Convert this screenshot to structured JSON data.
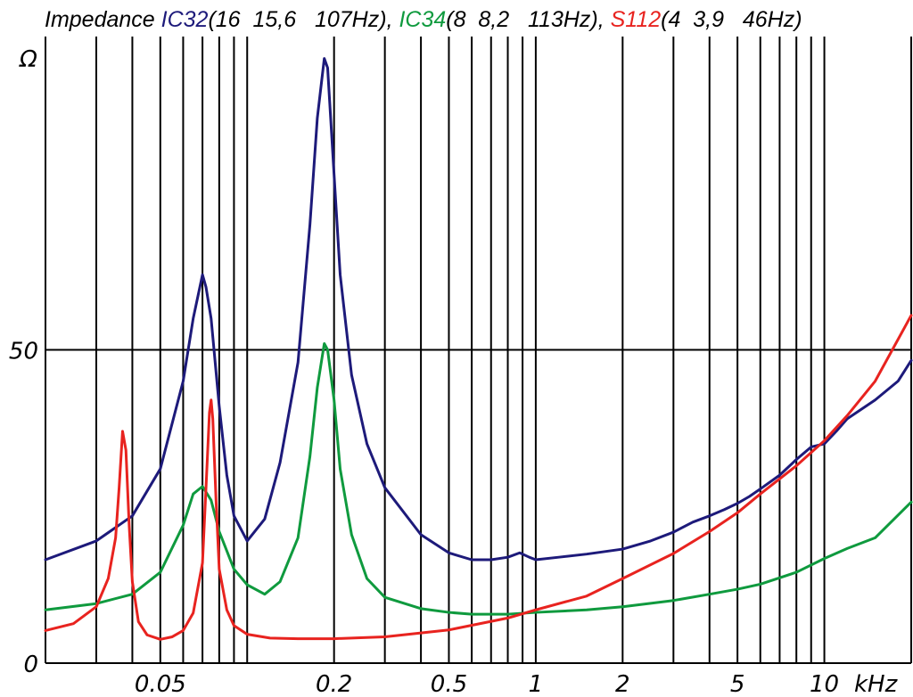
{
  "chart_data": {
    "type": "line",
    "title": {
      "prefix": "Impedance ",
      "parts": [
        {
          "name": "IC32",
          "detail": "(16  15,6   107Hz), ",
          "color": "#1d1a7a"
        },
        {
          "name": "IC34",
          "detail": "(8  8,2   113Hz), ",
          "color": "#0f9a3e"
        },
        {
          "name": "S112",
          "detail": "(4  3,9   46Hz)",
          "color": "#e8231f"
        }
      ]
    },
    "x_unit_label": "kHz",
    "y_unit_label": "Ω",
    "x_scale": "log",
    "x_range_khz": [
      0.02,
      20
    ],
    "y_range_ohm": [
      0,
      100
    ],
    "x_tick_labels": [
      {
        "value": 0.05,
        "label": "0.05"
      },
      {
        "value": 0.2,
        "label": "0.2"
      },
      {
        "value": 0.5,
        "label": "0.5"
      },
      {
        "value": 1,
        "label": "1"
      },
      {
        "value": 2,
        "label": "2"
      },
      {
        "value": 5,
        "label": "5"
      },
      {
        "value": 10,
        "label": "10"
      }
    ],
    "x_gridlines_khz": [
      0.03,
      0.04,
      0.05,
      0.06,
      0.07,
      0.08,
      0.09,
      0.1,
      0.2,
      0.3,
      0.4,
      0.5,
      0.6,
      0.7,
      0.8,
      0.9,
      1,
      2,
      3,
      4,
      5,
      6,
      7,
      8,
      9,
      10,
      20
    ],
    "y_tick_labels": [
      {
        "value": 0,
        "label": "0"
      },
      {
        "value": 50,
        "label": "50"
      }
    ],
    "y_gridlines_ohm": [
      50
    ],
    "grid": true,
    "series": [
      {
        "name": "IC32",
        "color": "#1d1a7a",
        "x": [
          0.02,
          0.03,
          0.04,
          0.05,
          0.06,
          0.065,
          0.07,
          0.072,
          0.075,
          0.08,
          0.085,
          0.09,
          0.1,
          0.115,
          0.13,
          0.15,
          0.165,
          0.175,
          0.185,
          0.19,
          0.2,
          0.21,
          0.23,
          0.26,
          0.3,
          0.4,
          0.5,
          0.6,
          0.7,
          0.8,
          0.88,
          0.95,
          1.0,
          1.2,
          1.5,
          2,
          2.5,
          3,
          3.5,
          4,
          4.5,
          5,
          5.5,
          6,
          7,
          8,
          9,
          10,
          11,
          12,
          15,
          18,
          20
        ],
        "y": [
          16.5,
          19.5,
          23.5,
          31,
          45,
          55,
          62,
          60,
          55,
          41,
          30,
          23.5,
          19.5,
          23,
          32,
          48,
          70,
          87,
          96.5,
          95,
          78,
          62,
          46,
          35,
          28,
          20.5,
          17.6,
          16.5,
          16.5,
          16.9,
          17.6,
          16.9,
          16.5,
          16.9,
          17.4,
          18.2,
          19.5,
          20.9,
          22.5,
          23.5,
          24.5,
          25.5,
          26.6,
          27.8,
          30,
          32.5,
          34.5,
          35,
          37,
          39,
          42,
          45,
          48.3
        ]
      },
      {
        "name": "IC34",
        "color": "#0f9a3e",
        "x": [
          0.02,
          0.03,
          0.04,
          0.05,
          0.06,
          0.065,
          0.07,
          0.075,
          0.08,
          0.09,
          0.1,
          0.115,
          0.13,
          0.15,
          0.165,
          0.175,
          0.185,
          0.19,
          0.2,
          0.21,
          0.23,
          0.26,
          0.3,
          0.4,
          0.5,
          0.6,
          0.8,
          1.0,
          1.5,
          2,
          3,
          4,
          5,
          6,
          8,
          10,
          12,
          15,
          20
        ],
        "y": [
          8.5,
          9.5,
          11,
          14.5,
          22,
          27,
          28.2,
          26,
          21,
          15,
          12.5,
          11,
          13,
          20,
          33,
          44,
          51,
          50,
          42,
          31,
          20.5,
          13.5,
          10.5,
          8.7,
          8.1,
          7.8,
          7.8,
          8.1,
          8.5,
          9,
          10,
          11,
          11.8,
          12.6,
          14.5,
          16.7,
          18.3,
          20,
          25.7
        ]
      },
      {
        "name": "S112",
        "color": "#e8231f",
        "x": [
          0.02,
          0.025,
          0.03,
          0.033,
          0.035,
          0.036,
          0.037,
          0.038,
          0.039,
          0.04,
          0.042,
          0.045,
          0.05,
          0.055,
          0.06,
          0.065,
          0.07,
          0.072,
          0.074,
          0.075,
          0.076,
          0.078,
          0.08,
          0.085,
          0.09,
          0.1,
          0.12,
          0.15,
          0.2,
          0.3,
          0.5,
          0.8,
          1,
          1.5,
          2,
          3,
          4,
          5,
          6,
          8,
          10,
          12,
          15,
          20
        ],
        "y": [
          5.2,
          6.3,
          9,
          13.5,
          20,
          28,
          37,
          34,
          22,
          13,
          6.6,
          4.5,
          3.8,
          4.2,
          5.2,
          8,
          16,
          28,
          40,
          42,
          39,
          26,
          15,
          8.5,
          6,
          4.6,
          4,
          3.9,
          3.9,
          4.2,
          5.3,
          7.2,
          8.5,
          10.7,
          13.5,
          17.5,
          21,
          24,
          27,
          31.5,
          35.5,
          39.5,
          45,
          55.5
        ]
      }
    ]
  }
}
